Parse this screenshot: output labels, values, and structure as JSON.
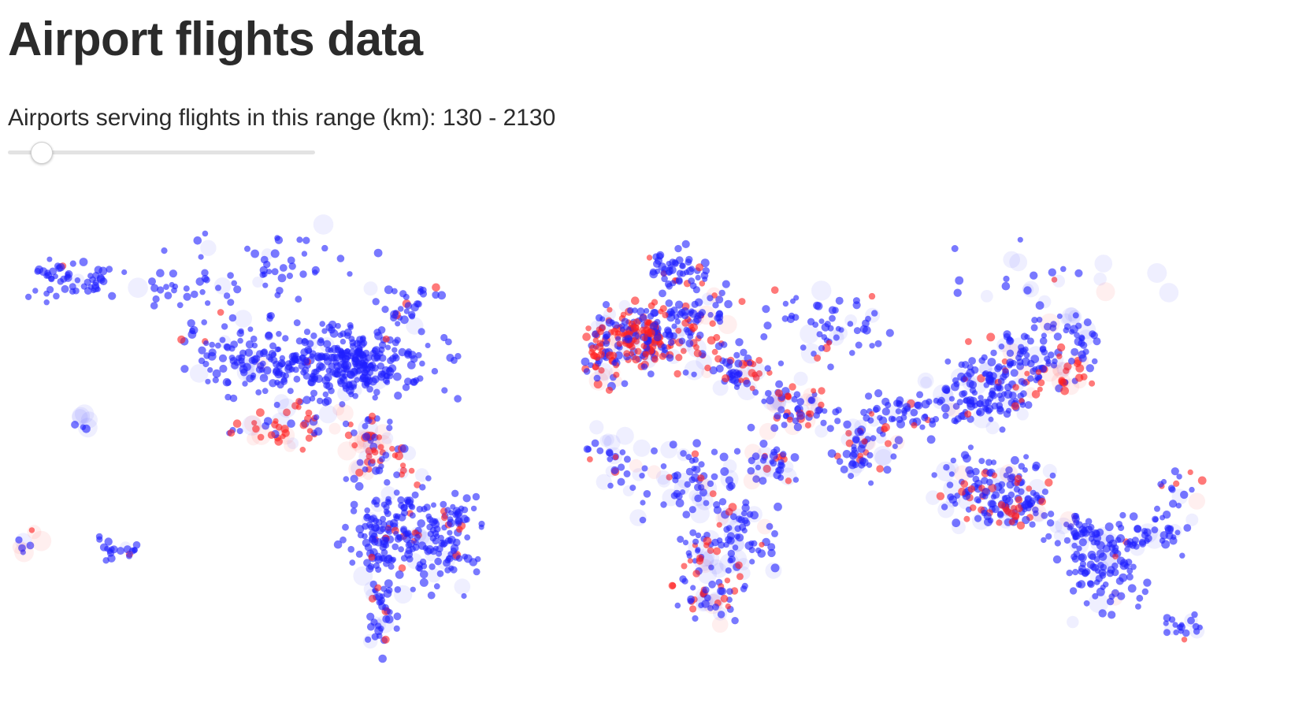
{
  "header": {
    "title": "Airport flights data"
  },
  "range_filter": {
    "label": "Airports serving flights in this range (km): 130 - 2130",
    "min_km": 130,
    "max_km": 2130,
    "slider_value_fraction": 0.1
  },
  "colors": {
    "inside_range": "#1f1fff",
    "outside_range": "#ff1f1f"
  }
}
